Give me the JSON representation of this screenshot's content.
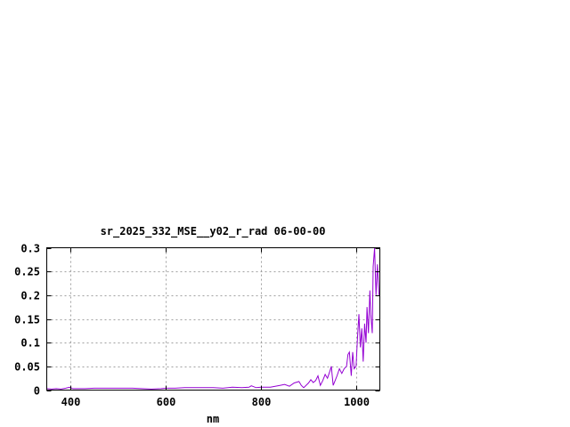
{
  "chart_data": {
    "type": "line",
    "title": "sr_2025_332_MSE__y02_r_rad 06-00-00",
    "xlabel": "nm",
    "ylabel": "",
    "xlim": [
      350,
      1050
    ],
    "ylim": [
      0,
      0.3
    ],
    "grid": true,
    "x_ticks": [
      "400",
      "600",
      "800",
      "1000"
    ],
    "x_tick_values": [
      400,
      600,
      800,
      1000
    ],
    "y_ticks": [
      "0",
      "0.05",
      "0.1",
      "0.15",
      "0.2",
      "0.25",
      "0.3"
    ],
    "y_tick_values": [
      0,
      0.05,
      0.1,
      0.15,
      0.2,
      0.25,
      0.3
    ],
    "series": [
      {
        "color": "#9400d3",
        "x": [
          350,
          360,
          370,
          380,
          390,
          398,
          405,
          415,
          430,
          450,
          470,
          500,
          530,
          550,
          570,
          590,
          600,
          620,
          640,
          660,
          680,
          700,
          720,
          740,
          760,
          775,
          780,
          790,
          800,
          820,
          840,
          850,
          860,
          870,
          880,
          885,
          890,
          900,
          905,
          910,
          915,
          920,
          925,
          930,
          935,
          940,
          945,
          948,
          952,
          956,
          960,
          965,
          970,
          975,
          980,
          983,
          986,
          990,
          993,
          996,
          1000,
          1003,
          1006,
          1009,
          1012,
          1015,
          1018,
          1021,
          1023,
          1026,
          1029,
          1031,
          1034,
          1036,
          1039,
          1042,
          1045,
          1048
        ],
        "y": [
          0.003,
          0.002,
          0.003,
          0.002,
          0.004,
          0.006,
          0.003,
          0.003,
          0.003,
          0.004,
          0.004,
          0.004,
          0.004,
          0.003,
          0.002,
          0.003,
          0.004,
          0.004,
          0.005,
          0.005,
          0.005,
          0.005,
          0.004,
          0.006,
          0.005,
          0.006,
          0.009,
          0.005,
          0.006,
          0.006,
          0.01,
          0.012,
          0.008,
          0.015,
          0.018,
          0.01,
          0.005,
          0.015,
          0.022,
          0.016,
          0.02,
          0.03,
          0.01,
          0.02,
          0.033,
          0.025,
          0.04,
          0.05,
          0.01,
          0.02,
          0.03,
          0.045,
          0.035,
          0.045,
          0.05,
          0.075,
          0.08,
          0.03,
          0.08,
          0.045,
          0.05,
          0.11,
          0.16,
          0.09,
          0.13,
          0.06,
          0.14,
          0.1,
          0.175,
          0.12,
          0.21,
          0.16,
          0.12,
          0.26,
          0.3,
          0.2,
          0.265,
          0.2
        ]
      }
    ]
  }
}
